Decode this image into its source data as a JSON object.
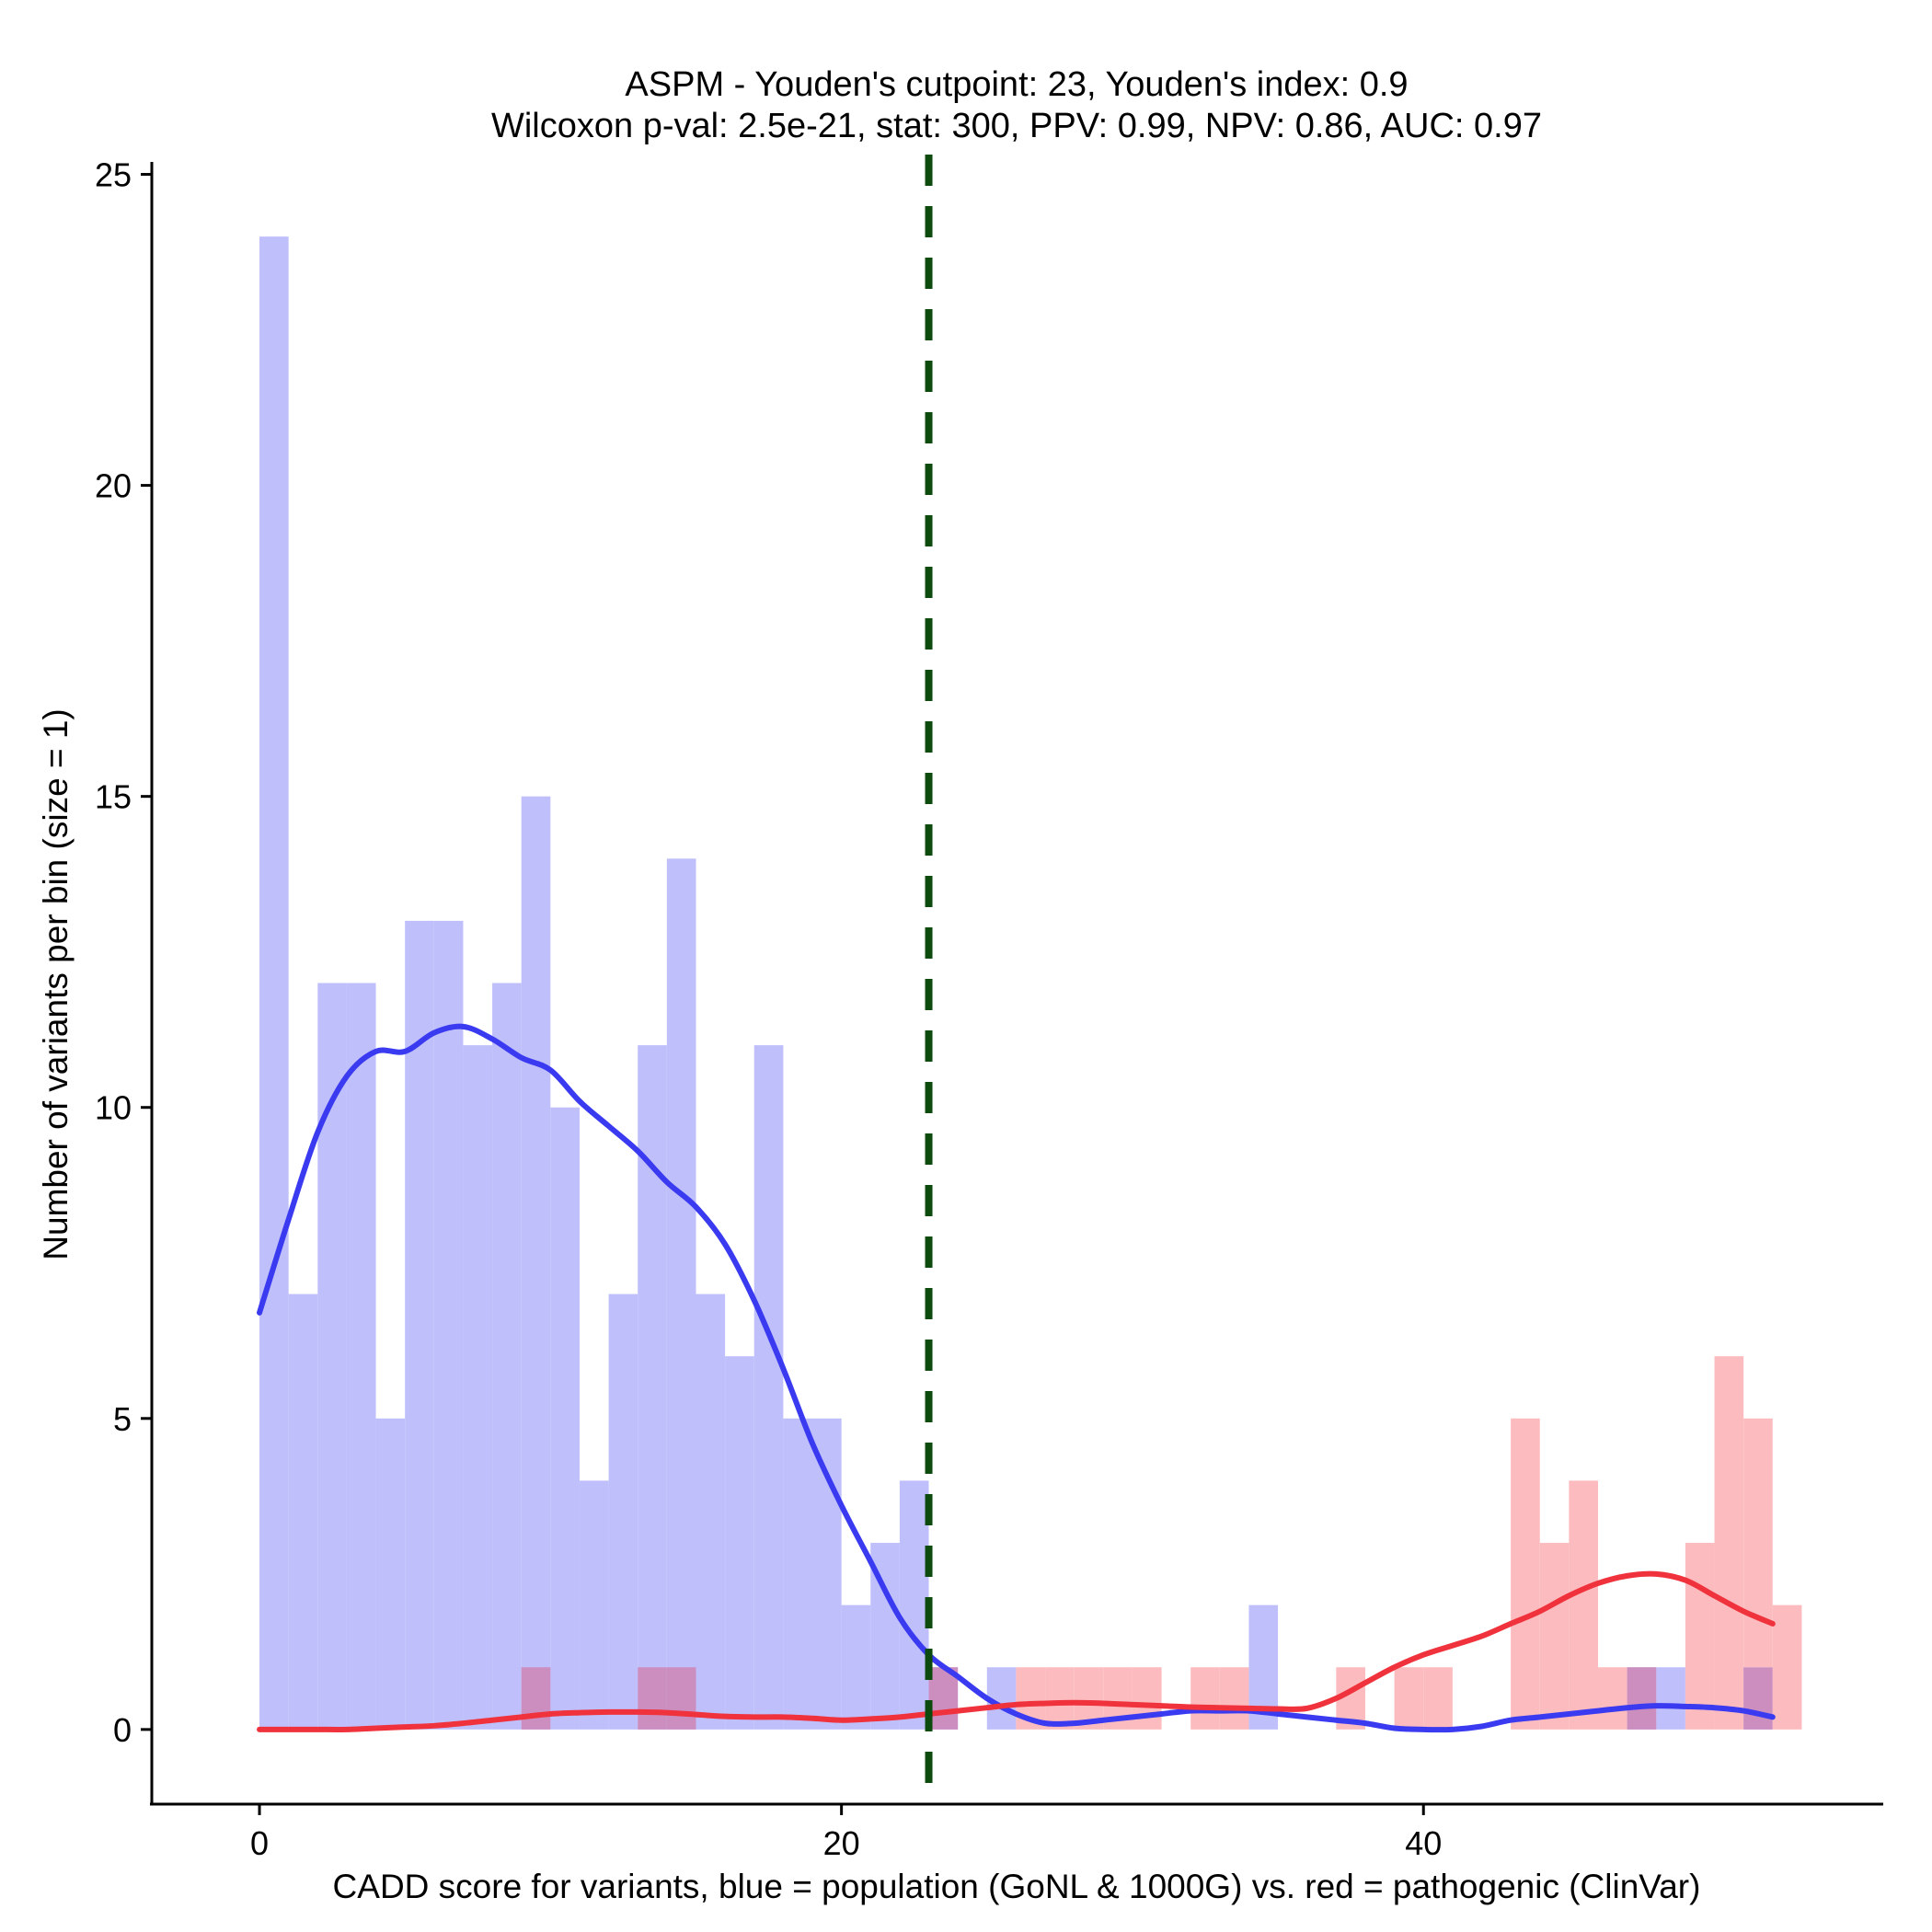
{
  "chart_data": {
    "type": "bar",
    "title_line1": "ASPM - Youden's cutpoint: 23, Youden's index: 0.9",
    "title_line2": "Wilcoxon p-val: 2.5e-21, stat: 300, PPV: 0.99, NPV: 0.86, AUC: 0.97",
    "xlabel": "CADD score for variants, blue = population (GoNL & 1000G) vs. red = pathogenic (ClinVar)",
    "ylabel": "Number of variants per bin (size = 1)",
    "xlim": [
      -3.7,
      55.8
    ],
    "ylim": [
      -1.2,
      25.2
    ],
    "xticks": [
      0,
      20,
      40
    ],
    "xtick_labels": [
      "0",
      "20",
      "40"
    ],
    "yticks": [
      0,
      5,
      10,
      15,
      20,
      25
    ],
    "ytick_labels": [
      "0",
      "5",
      "10",
      "15",
      "20",
      "25"
    ],
    "bin_size": 1,
    "cutpoint": 23,
    "colors": {
      "population_bar": "#bfbffc",
      "pathogenic_bar": "#fcbcbf",
      "overlap_bar": "#cc8ebf",
      "population_line": "#3a3af0",
      "pathogenic_line": "#f0323c",
      "cutpoint_line": "#0d4a0d"
    },
    "series": [
      {
        "name": "population (GoNL & 1000G)",
        "bin_starts": [
          0,
          1,
          2,
          3,
          4,
          5,
          6,
          7,
          8,
          9,
          10,
          11,
          12,
          13,
          14,
          15,
          16,
          17,
          18,
          19,
          20,
          21,
          22,
          23,
          25,
          34,
          47,
          48,
          51
        ],
        "counts": [
          24,
          7,
          12,
          12,
          5,
          13,
          13,
          11,
          12,
          15,
          10,
          4,
          7,
          11,
          14,
          7,
          6,
          11,
          5,
          5,
          2,
          3,
          4,
          1,
          1,
          2,
          1,
          1,
          1
        ],
        "density_x": [
          0,
          1,
          2,
          3,
          4,
          5,
          6,
          7,
          8,
          9,
          10,
          11,
          12,
          13,
          14,
          15,
          16,
          17,
          18,
          19,
          20,
          21,
          22,
          23,
          24,
          25,
          26,
          27,
          28,
          29,
          30,
          31,
          32,
          33,
          34,
          35,
          36,
          37,
          38,
          39,
          40,
          41,
          42,
          43,
          44,
          45,
          46,
          47,
          48,
          49,
          50,
          51,
          52
        ],
        "density_y": [
          6.7,
          8.2,
          9.6,
          10.5,
          10.9,
          10.9,
          11.2,
          11.3,
          11.1,
          10.8,
          10.6,
          10.1,
          9.7,
          9.3,
          8.8,
          8.4,
          7.8,
          6.9,
          5.8,
          4.6,
          3.6,
          2.7,
          1.8,
          1.2,
          0.85,
          0.5,
          0.25,
          0.1,
          0.1,
          0.15,
          0.2,
          0.25,
          0.3,
          0.3,
          0.3,
          0.25,
          0.2,
          0.15,
          0.1,
          0.02,
          0.0,
          0.0,
          0.05,
          0.15,
          0.2,
          0.25,
          0.3,
          0.35,
          0.38,
          0.37,
          0.35,
          0.3,
          0.2
        ]
      },
      {
        "name": "pathogenic (ClinVar)",
        "bin_starts": [
          9,
          13,
          14,
          23,
          26,
          27,
          28,
          29,
          30,
          32,
          33,
          37,
          39,
          40,
          43,
          44,
          45,
          46,
          47,
          49,
          50,
          51,
          52
        ],
        "counts": [
          1,
          1,
          1,
          1,
          1,
          1,
          1,
          1,
          1,
          1,
          1,
          1,
          1,
          1,
          5,
          3,
          4,
          1,
          1,
          3,
          6,
          5,
          2
        ],
        "density_x": [
          0,
          1,
          2,
          3,
          4,
          5,
          6,
          7,
          8,
          9,
          10,
          11,
          12,
          13,
          14,
          15,
          16,
          17,
          18,
          19,
          20,
          21,
          22,
          23,
          24,
          25,
          26,
          27,
          28,
          29,
          30,
          31,
          32,
          33,
          34,
          35,
          36,
          37,
          38,
          39,
          40,
          41,
          42,
          43,
          44,
          45,
          46,
          47,
          48,
          49,
          50,
          51,
          52
        ],
        "density_y": [
          0.0,
          0.0,
          0.0,
          0.0,
          0.02,
          0.04,
          0.06,
          0.1,
          0.15,
          0.2,
          0.25,
          0.27,
          0.28,
          0.28,
          0.27,
          0.24,
          0.21,
          0.2,
          0.2,
          0.18,
          0.15,
          0.17,
          0.2,
          0.25,
          0.3,
          0.35,
          0.4,
          0.42,
          0.43,
          0.42,
          0.4,
          0.38,
          0.36,
          0.35,
          0.34,
          0.33,
          0.34,
          0.5,
          0.75,
          1.0,
          1.2,
          1.35,
          1.5,
          1.7,
          1.9,
          2.15,
          2.35,
          2.47,
          2.5,
          2.4,
          2.15,
          1.9,
          1.7
        ]
      }
    ]
  }
}
